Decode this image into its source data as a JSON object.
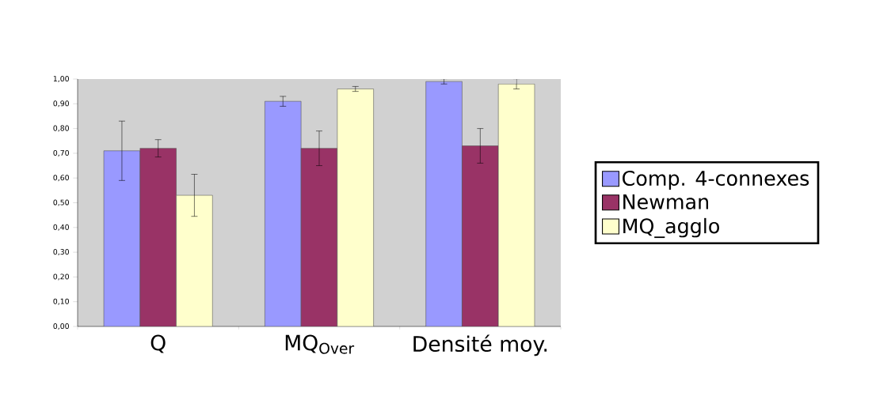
{
  "chart_data": {
    "type": "bar",
    "categories": [
      "Q",
      "MQ$_{Over}$",
      "Densité moy."
    ],
    "series": [
      {
        "name": "Comp. 4-connexes",
        "color": "#9999ff",
        "values": [
          0.71,
          0.91,
          0.99
        ],
        "errors": [
          0.12,
          0.02,
          0.01
        ]
      },
      {
        "name": "Newman",
        "color": "#993366",
        "values": [
          0.72,
          0.72,
          0.73
        ],
        "errors": [
          0.035,
          0.07,
          0.07
        ]
      },
      {
        "name": "MQ_agglo",
        "color": "#ffffcc",
        "values": [
          0.53,
          0.96,
          0.98
        ],
        "errors": [
          0.085,
          0.01,
          0.02
        ]
      }
    ],
    "ylim": [
      0,
      1
    ],
    "yticks": [
      {
        "value": 0,
        "label": "0,00"
      },
      {
        "value": 0.1,
        "label": "0,10"
      },
      {
        "value": 0.2,
        "label": "0,20"
      },
      {
        "value": 0.3,
        "label": "0,30"
      },
      {
        "value": 0.4,
        "label": "0,40"
      },
      {
        "value": 0.5,
        "label": "0,50"
      },
      {
        "value": 0.6,
        "label": "0,60"
      },
      {
        "value": 0.7,
        "label": "0,70"
      },
      {
        "value": 0.8,
        "label": "0,80"
      },
      {
        "value": 0.9,
        "label": "0,90"
      },
      {
        "value": 1,
        "label": "1,00"
      }
    ],
    "legend": "right"
  }
}
